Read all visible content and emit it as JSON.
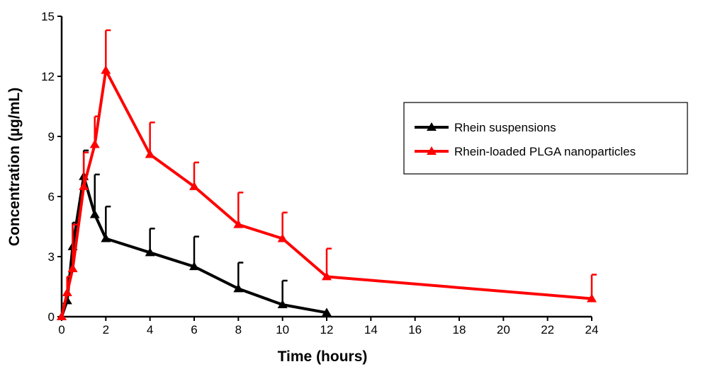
{
  "chart_data": {
    "type": "line",
    "title": "",
    "xlabel": "Time (hours)",
    "ylabel": "Concentration (µg/mL)",
    "xlim": [
      0,
      24
    ],
    "ylim": [
      0,
      15
    ],
    "xticks": [
      "0",
      "2",
      "4",
      "6",
      "8",
      "10",
      "12",
      "14",
      "16",
      "18",
      "20",
      "22",
      "24"
    ],
    "yticks": [
      "0",
      "3",
      "6",
      "9",
      "12",
      "15"
    ],
    "grid": false,
    "legend_position": "right",
    "error_bars": "upper",
    "series": [
      {
        "name": "Rhein suspensions",
        "color": "#000000",
        "marker": "triangle",
        "x": [
          0,
          0.25,
          0.5,
          1,
          1.5,
          2,
          4,
          6,
          8,
          10,
          12
        ],
        "y": [
          0,
          0.8,
          3.5,
          7.0,
          5.1,
          3.9,
          3.2,
          2.5,
          1.4,
          0.6,
          0.2
        ],
        "error": [
          0,
          1.2,
          1.2,
          1.3,
          2.0,
          1.6,
          1.2,
          1.5,
          1.3,
          1.2,
          0
        ]
      },
      {
        "name": "Rhein-loaded PLGA nanoparticles",
        "color": "#ff0000",
        "marker": "triangle",
        "x": [
          0,
          0.25,
          0.5,
          1,
          1.5,
          2,
          4,
          6,
          8,
          10,
          12,
          24
        ],
        "y": [
          0,
          1.2,
          2.4,
          6.5,
          8.6,
          12.3,
          8.1,
          6.5,
          4.6,
          3.9,
          2.0,
          0.9
        ],
        "error": [
          0,
          0.8,
          2.2,
          1.7,
          1.4,
          2.0,
          1.6,
          1.2,
          1.6,
          1.3,
          1.4,
          1.2
        ]
      }
    ]
  }
}
